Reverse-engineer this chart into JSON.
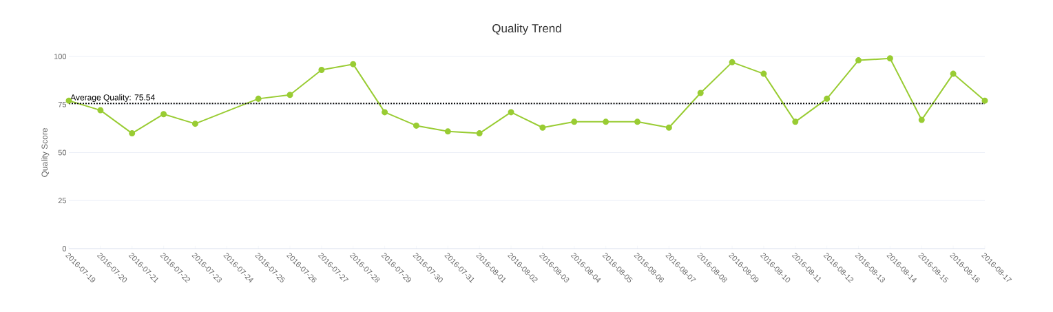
{
  "chart_data": {
    "type": "line",
    "title": "Quality Trend",
    "ylabel": "Quality Score",
    "categories": [
      "2016-07-19",
      "2016-07-20",
      "2016-07-21",
      "2016-07-22",
      "2016-07-23",
      "2016-07-24",
      "2016-07-25",
      "2016-07-26",
      "2016-07-27",
      "2016-07-28",
      "2016-07-29",
      "2016-07-30",
      "2016-07-31",
      "2016-08-01",
      "2016-08-02",
      "2016-08-03",
      "2016-08-04",
      "2016-08-05",
      "2016-08-06",
      "2016-08-07",
      "2016-08-08",
      "2016-08-09",
      "2016-08-10",
      "2016-08-11",
      "2016-08-12",
      "2016-08-13",
      "2016-08-14",
      "2016-08-15",
      "2016-08-16",
      "2016-08-17"
    ],
    "series": [
      {
        "color": "#99cc33",
        "values": [
          77,
          72,
          60,
          70,
          65,
          null,
          78,
          80,
          93,
          96,
          71,
          64,
          61,
          60,
          71,
          63,
          66,
          66,
          66,
          63,
          81,
          97,
          91,
          66,
          78,
          98,
          99,
          67,
          91,
          77
        ]
      }
    ],
    "ylim": [
      0,
      100
    ],
    "yticks": [
      0,
      25,
      50,
      75,
      100
    ],
    "grid": "y",
    "marker": "circle",
    "line_style": "solid",
    "ref_lines": [
      {
        "axis": "y",
        "value": 75.54,
        "label": "Average Quality: 75.54",
        "color": "#000000",
        "line_style": "dotted"
      }
    ]
  }
}
